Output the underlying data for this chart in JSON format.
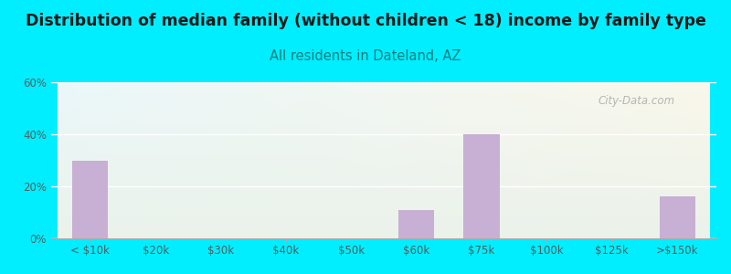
{
  "title": "Distribution of median family (without children < 18) income by family type",
  "subtitle": "All residents in Dateland, AZ",
  "categories": [
    "< $10k",
    "$20k",
    "$30k",
    "$40k",
    "$50k",
    "$60k",
    "$75k",
    "$100k",
    "$125k",
    ">$150k"
  ],
  "values": [
    30,
    0,
    0,
    0,
    0,
    11,
    40,
    0,
    0,
    16
  ],
  "bar_color": "#c8afd4",
  "title_color": "#1a1a1a",
  "subtitle_color": "#007f7f",
  "axis_label_color": "#4d6060",
  "background_outer": "#00eeff",
  "watermark": "City-Data.com",
  "ylim": [
    0,
    60
  ],
  "yticks": [
    0,
    20,
    40,
    60
  ],
  "title_fontsize": 12.5,
  "subtitle_fontsize": 10.5,
  "bar_width": 0.55
}
